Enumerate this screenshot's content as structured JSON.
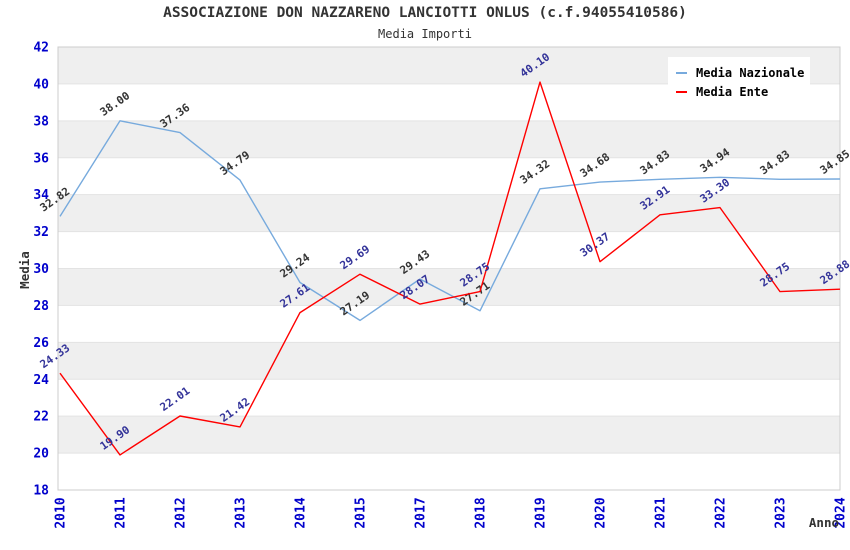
{
  "chart_data": {
    "type": "line",
    "title": "ASSOCIAZIONE DON NAZZARENO LANCIOTTI ONLUS (c.f.94055410586)",
    "subtitle": "Media Importi",
    "xlabel": "Anno",
    "ylabel": "Media",
    "ylim": [
      18,
      42
    ],
    "ytick_step": 2,
    "grid": "horizontal-bands",
    "legend_position": "top-right",
    "categories": [
      "2010",
      "2011",
      "2012",
      "2013",
      "2014",
      "2015",
      "2017",
      "2018",
      "2019",
      "2020",
      "2021",
      "2022",
      "2023",
      "2024"
    ],
    "series": [
      {
        "name": "Media Nazionale",
        "color": "#77aadd",
        "label_color": "#333333",
        "values": [
          32.82,
          38.0,
          37.36,
          34.79,
          29.24,
          27.19,
          29.43,
          27.71,
          34.32,
          34.68,
          34.83,
          34.94,
          34.83,
          34.85
        ]
      },
      {
        "name": "Media Ente",
        "color": "#ff0000",
        "label_color": "#333399",
        "values": [
          24.33,
          19.9,
          22.01,
          21.42,
          27.61,
          29.69,
          28.07,
          28.75,
          40.1,
          30.37,
          32.91,
          33.3,
          28.75,
          28.88
        ]
      }
    ],
    "colors": {
      "tick_label": "#0000cc",
      "axis_title": "#333333",
      "band_gray": "#efefef",
      "band_white": "#ffffff",
      "gridline": "#e3e3e3",
      "plot_border": "#cccccc"
    }
  }
}
